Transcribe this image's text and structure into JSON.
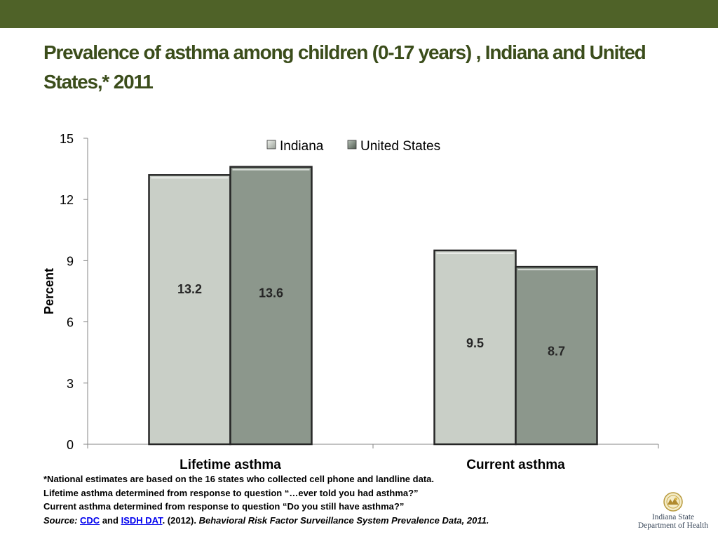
{
  "title": "Prevalence of asthma among children (0-17 years) , Indiana and United States,* 2011",
  "colors": {
    "top_bar": "#4f6228",
    "title": "#3b4d1b",
    "indiana": "#c9cfc7",
    "united_states": "#8c978c",
    "bar_border": "#262626",
    "link": "#0000ee"
  },
  "chart_data": {
    "type": "bar",
    "title": "",
    "categories": [
      "Lifetime asthma",
      "Current asthma"
    ],
    "series": [
      {
        "name": "Indiana",
        "values": [
          13.2,
          9.5
        ]
      },
      {
        "name": "United States",
        "values": [
          13.6,
          8.7
        ]
      }
    ],
    "xlabel": "",
    "ylabel": "Percent",
    "ylim": [
      0,
      15
    ],
    "yticks": [
      0,
      3,
      6,
      9,
      12,
      15
    ],
    "grid": false,
    "legend": "top-center",
    "data_labels": true
  },
  "footnotes": {
    "line1": "*National estimates are based on the 16 states who collected cell phone and landline data.",
    "line2": "Lifetime asthma determined from response to question “…ever told you had asthma?”",
    "line3": "Current asthma determined from response to question “Do you still have asthma?”",
    "source_label": "Source:",
    "source_link1": "CDC",
    "source_and": "and",
    "source_link2": "ISDH DAT",
    "source_year": ". (2012).",
    "source_title": "Behavioral Risk Factor Surveillance System Prevalence Data, 2011."
  },
  "logo": {
    "line1": "Indiana State",
    "line2": "Department of Health",
    "icon": "state-seal-icon"
  }
}
